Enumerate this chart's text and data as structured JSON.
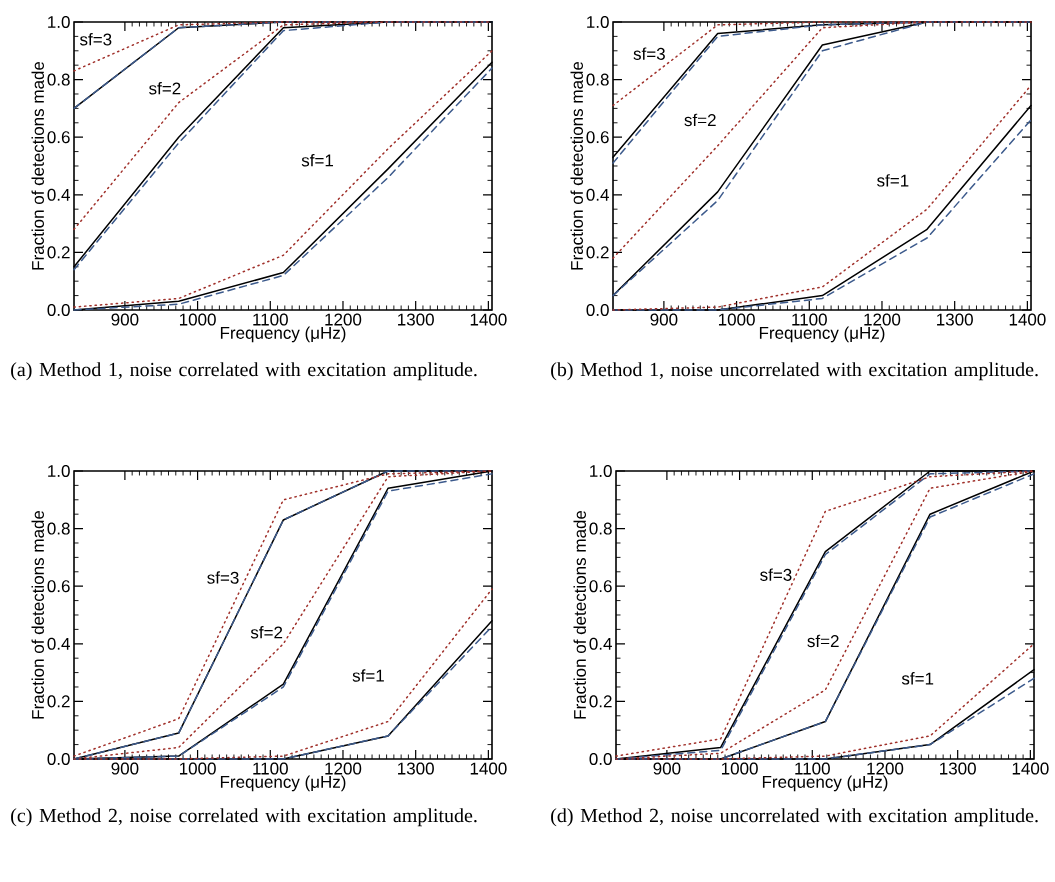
{
  "chart_data": [
    {
      "type": "line",
      "xlabel": "Frequency (μHz)",
      "ylabel": "Fraction of detections made",
      "x": [
        830,
        974,
        1118,
        1262,
        1405
      ],
      "xlim": [
        830,
        1405
      ],
      "ylim": [
        0,
        1
      ],
      "xticks": [
        900,
        1000,
        1100,
        1200,
        1300,
        1400
      ],
      "yticks": [
        {
          "value": 0,
          "label": "0.0"
        },
        {
          "value": 0.2,
          "label": "0.2"
        },
        {
          "value": 0.4,
          "label": "0.4"
        },
        {
          "value": 0.6,
          "label": "0.6"
        },
        {
          "value": 0.8,
          "label": "0.8"
        },
        {
          "value": 1,
          "label": "1.0"
        }
      ],
      "series": [
        {
          "color": "#000000",
          "line_style": "solid",
          "values": [
            0.7,
            0.98,
            1.0,
            1.0,
            1.0
          ]
        },
        {
          "color": "#3c5a8c",
          "line_style": "dashed",
          "values": [
            0.7,
            0.98,
            1.0,
            1.0,
            1.0
          ]
        },
        {
          "color": "#a0302a",
          "line_style": "dotted",
          "values": [
            0.83,
            0.99,
            1.0,
            1.0,
            1.0
          ]
        },
        {
          "color": "#000000",
          "line_style": "solid",
          "values": [
            0.15,
            0.6,
            0.98,
            1.0,
            1.0
          ]
        },
        {
          "color": "#3c5a8c",
          "line_style": "dashed",
          "values": [
            0.14,
            0.58,
            0.97,
            1.0,
            1.0
          ]
        },
        {
          "color": "#a0302a",
          "line_style": "dotted",
          "values": [
            0.28,
            0.72,
            0.99,
            1.0,
            1.0
          ]
        },
        {
          "color": "#000000",
          "line_style": "solid",
          "values": [
            0.0,
            0.03,
            0.13,
            0.49,
            0.86
          ]
        },
        {
          "color": "#3c5a8c",
          "line_style": "dashed",
          "values": [
            0.0,
            0.02,
            0.12,
            0.46,
            0.84
          ]
        },
        {
          "color": "#a0302a",
          "line_style": "dotted",
          "values": [
            0.01,
            0.04,
            0.19,
            0.56,
            0.9
          ]
        }
      ],
      "annotations": [
        {
          "text": "sf=3",
          "x": 860,
          "y": 0.94
        },
        {
          "text": "sf=2",
          "x": 955,
          "y": 0.77
        },
        {
          "text": "sf=1",
          "x": 1165,
          "y": 0.52
        },
        "(a) Method 1, noise correlated with excitation amplitude."
      ]
    },
    {
      "type": "line",
      "xlabel": "Frequency (μHz)",
      "ylabel": "Fraction of detections made",
      "x": [
        830,
        974,
        1118,
        1262,
        1405
      ],
      "xlim": [
        830,
        1405
      ],
      "ylim": [
        0,
        1
      ],
      "xticks": [
        900,
        1000,
        1100,
        1200,
        1300,
        1400
      ],
      "yticks": [
        {
          "value": 0,
          "label": "0.0"
        },
        {
          "value": 0.2,
          "label": "0.2"
        },
        {
          "value": 0.4,
          "label": "0.4"
        },
        {
          "value": 0.6,
          "label": "0.6"
        },
        {
          "value": 0.8,
          "label": "0.8"
        },
        {
          "value": 1,
          "label": "1.0"
        }
      ],
      "series": [
        {
          "color": "#000000",
          "line_style": "solid",
          "values": [
            0.53,
            0.96,
            0.99,
            1.0,
            1.0
          ]
        },
        {
          "color": "#3c5a8c",
          "line_style": "dashed",
          "values": [
            0.51,
            0.95,
            0.99,
            1.0,
            1.0
          ]
        },
        {
          "color": "#a0302a",
          "line_style": "dotted",
          "values": [
            0.71,
            0.99,
            1.0,
            1.0,
            1.0
          ]
        },
        {
          "color": "#000000",
          "line_style": "solid",
          "values": [
            0.05,
            0.41,
            0.92,
            1.0,
            1.0
          ]
        },
        {
          "color": "#3c5a8c",
          "line_style": "dashed",
          "values": [
            0.05,
            0.38,
            0.9,
            1.0,
            1.0
          ]
        },
        {
          "color": "#a0302a",
          "line_style": "dotted",
          "values": [
            0.18,
            0.57,
            0.98,
            1.0,
            1.0
          ]
        },
        {
          "color": "#000000",
          "line_style": "solid",
          "values": [
            0.0,
            0.0,
            0.05,
            0.28,
            0.71
          ]
        },
        {
          "color": "#3c5a8c",
          "line_style": "dashed",
          "values": [
            0.0,
            0.0,
            0.04,
            0.25,
            0.66
          ]
        },
        {
          "color": "#a0302a",
          "line_style": "dotted",
          "values": [
            0.0,
            0.01,
            0.08,
            0.35,
            0.78
          ]
        }
      ],
      "annotations": [
        {
          "text": "sf=3",
          "x": 880,
          "y": 0.89
        },
        {
          "text": "sf=2",
          "x": 950,
          "y": 0.66
        },
        {
          "text": "sf=1",
          "x": 1215,
          "y": 0.45
        },
        "(b) Method 1, noise uncorrelated with excitation amplitude."
      ]
    },
    {
      "type": "line",
      "xlabel": "Frequency (μHz)",
      "ylabel": "Fraction of detections made",
      "x": [
        830,
        974,
        1118,
        1262,
        1405
      ],
      "xlim": [
        830,
        1405
      ],
      "ylim": [
        0,
        1
      ],
      "xticks": [
        900,
        1000,
        1100,
        1200,
        1300,
        1400
      ],
      "yticks": [
        {
          "value": 0,
          "label": "0.0"
        },
        {
          "value": 0.2,
          "label": "0.2"
        },
        {
          "value": 0.4,
          "label": "0.4"
        },
        {
          "value": 0.6,
          "label": "0.6"
        },
        {
          "value": 0.8,
          "label": "0.8"
        },
        {
          "value": 1,
          "label": "1.0"
        }
      ],
      "series": [
        {
          "color": "#000000",
          "line_style": "solid",
          "values": [
            0.0,
            0.09,
            0.83,
            1.0,
            1.0
          ]
        },
        {
          "color": "#3c5a8c",
          "line_style": "dashed",
          "values": [
            0.0,
            0.09,
            0.83,
            1.0,
            1.0
          ]
        },
        {
          "color": "#a0302a",
          "line_style": "dotted",
          "values": [
            0.01,
            0.14,
            0.9,
            0.99,
            1.0
          ]
        },
        {
          "color": "#000000",
          "line_style": "solid",
          "values": [
            0.0,
            0.01,
            0.26,
            0.94,
            1.0
          ]
        },
        {
          "color": "#3c5a8c",
          "line_style": "dashed",
          "values": [
            0.0,
            0.01,
            0.25,
            0.93,
            0.99
          ]
        },
        {
          "color": "#a0302a",
          "line_style": "dotted",
          "values": [
            0.0,
            0.04,
            0.4,
            0.98,
            1.0
          ]
        },
        {
          "color": "#000000",
          "line_style": "solid",
          "values": [
            0.0,
            0.0,
            0.0,
            0.08,
            0.48
          ]
        },
        {
          "color": "#3c5a8c",
          "line_style": "dashed",
          "values": [
            0.0,
            0.0,
            0.0,
            0.08,
            0.46
          ]
        },
        {
          "color": "#a0302a",
          "line_style": "dotted",
          "values": [
            0.0,
            0.0,
            0.01,
            0.13,
            0.59
          ]
        }
      ],
      "annotations": [
        {
          "text": "sf=3",
          "x": 1035,
          "y": 0.63
        },
        {
          "text": "sf=2",
          "x": 1095,
          "y": 0.44
        },
        {
          "text": "sf=1",
          "x": 1235,
          "y": 0.29
        },
        "(c) Method 2, noise correlated with excitation amplitude."
      ]
    },
    {
      "type": "line",
      "xlabel": "Frequency (μHz)",
      "ylabel": "Fraction of detections made",
      "x": [
        830,
        974,
        1118,
        1262,
        1405
      ],
      "xlim": [
        830,
        1405
      ],
      "ylim": [
        0,
        1
      ],
      "xticks": [
        900,
        1000,
        1100,
        1200,
        1300,
        1400
      ],
      "yticks": [
        {
          "value": 0,
          "label": "0.0"
        },
        {
          "value": 0.2,
          "label": "0.2"
        },
        {
          "value": 0.4,
          "label": "0.4"
        },
        {
          "value": 0.6,
          "label": "0.6"
        },
        {
          "value": 0.8,
          "label": "0.8"
        },
        {
          "value": 1,
          "label": "1.0"
        }
      ],
      "series": [
        {
          "color": "#000000",
          "line_style": "solid",
          "values": [
            0.0,
            0.04,
            0.72,
            1.0,
            1.0
          ]
        },
        {
          "color": "#3c5a8c",
          "line_style": "dashed",
          "values": [
            0.0,
            0.03,
            0.71,
            0.99,
            1.0
          ]
        },
        {
          "color": "#a0302a",
          "line_style": "dotted",
          "values": [
            0.01,
            0.07,
            0.86,
            0.98,
            1.0
          ]
        },
        {
          "color": "#000000",
          "line_style": "solid",
          "values": [
            0.0,
            0.0,
            0.13,
            0.85,
            1.0
          ]
        },
        {
          "color": "#3c5a8c",
          "line_style": "dashed",
          "values": [
            0.0,
            0.0,
            0.13,
            0.84,
            0.99
          ]
        },
        {
          "color": "#a0302a",
          "line_style": "dotted",
          "values": [
            0.0,
            0.02,
            0.24,
            0.94,
            1.0
          ]
        },
        {
          "color": "#000000",
          "line_style": "solid",
          "values": [
            0.0,
            0.0,
            0.0,
            0.05,
            0.31
          ]
        },
        {
          "color": "#3c5a8c",
          "line_style": "dashed",
          "values": [
            0.0,
            0.0,
            0.0,
            0.05,
            0.28
          ]
        },
        {
          "color": "#a0302a",
          "line_style": "dotted",
          "values": [
            0.0,
            0.0,
            0.01,
            0.08,
            0.4
          ]
        }
      ],
      "annotations": [
        {
          "text": "sf=3",
          "x": 1050,
          "y": 0.64
        },
        {
          "text": "sf=2",
          "x": 1115,
          "y": 0.41
        },
        {
          "text": "sf=1",
          "x": 1245,
          "y": 0.28
        },
        "(d) Method 2, noise uncorrelated with excitation amplitude."
      ]
    }
  ]
}
